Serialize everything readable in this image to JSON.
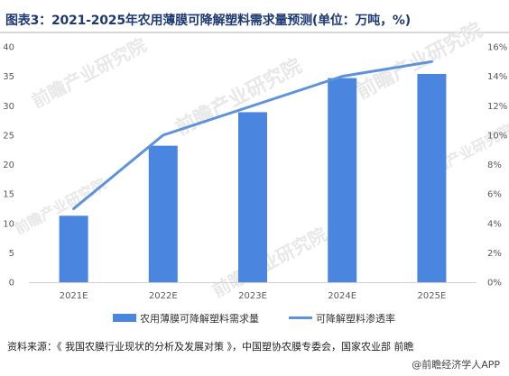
{
  "header": {
    "title": "图表3：2021-2025年农用薄膜可降解塑料需求量预测(单位：万吨，%)"
  },
  "watermark": {
    "brand": "前瞻产业研究院"
  },
  "chart_data": {
    "type": "bar",
    "categories": [
      "2021E",
      "2022E",
      "2023E",
      "2024E",
      "2025E"
    ],
    "series": [
      {
        "name": "农用薄膜可降解塑料需求量",
        "type": "bar",
        "axis": "left",
        "values": [
          11.3,
          23.2,
          28.9,
          34.7,
          35.4
        ],
        "color": "#4a86e0"
      },
      {
        "name": "可降解塑料渗透率",
        "type": "line",
        "axis": "right",
        "values": [
          5,
          10,
          12,
          14,
          15
        ],
        "color": "#5e92db"
      }
    ],
    "y_left": {
      "min": 0,
      "max": 40,
      "ticks": [
        "0",
        "5",
        "10",
        "15",
        "20",
        "25",
        "30",
        "35",
        "40"
      ]
    },
    "y_right": {
      "min": 0,
      "max": 16,
      "ticks": [
        "0%",
        "2%",
        "4%",
        "6%",
        "8%",
        "10%",
        "12%",
        "14%",
        "16%"
      ]
    },
    "grid": false,
    "legend_position": "bottom"
  },
  "footer": {
    "source": "资料来源：《 我国农膜行业现状的分析及发展对策 》，中国塑协农膜专委会，国家农业部 前瞻",
    "brand": "@前瞻经济学人APP"
  }
}
